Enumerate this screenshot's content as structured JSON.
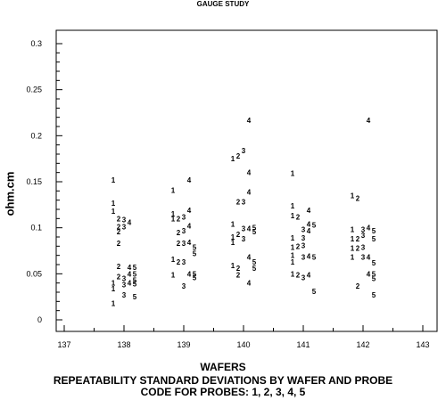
{
  "chart_data": {
    "type": "scatter",
    "title": "GAUGE STUDY",
    "xlabel": "WAFERS",
    "ylabel": "ohm.cm",
    "caption_line1": "REPEATABILITY STANDARD DEVIATIONS BY WAFER AND PROBE",
    "caption_line2": "CODE FOR PROBES: 1, 2, 3, 4, 5",
    "xlim": [
      137,
      143
    ],
    "ylim": [
      0,
      0.3
    ],
    "x_ticks": [
      "137",
      "138",
      "139",
      "140",
      "141",
      "142",
      "143"
    ],
    "y_ticks": [
      "0",
      "0.05",
      "0.1",
      "0.15",
      "0.2",
      "0.25",
      "0.3"
    ],
    "markers": "probe code digit",
    "series": [
      {
        "name": "1",
        "points": [
          [
            138,
            0.152
          ],
          [
            138,
            0.127
          ],
          [
            138,
            0.118
          ],
          [
            138,
            0.04
          ],
          [
            138,
            0.034
          ],
          [
            138,
            0.018
          ],
          [
            139,
            0.141
          ],
          [
            139,
            0.115
          ],
          [
            139,
            0.11
          ],
          [
            139,
            0.066
          ],
          [
            139,
            0.049
          ],
          [
            140,
            0.175
          ],
          [
            140,
            0.104
          ],
          [
            140,
            0.09
          ],
          [
            140,
            0.084
          ],
          [
            140,
            0.059
          ],
          [
            141,
            0.159
          ],
          [
            141,
            0.124
          ],
          [
            141,
            0.113
          ],
          [
            141,
            0.089
          ],
          [
            141,
            0.079
          ],
          [
            141,
            0.07
          ],
          [
            141,
            0.063
          ],
          [
            141,
            0.05
          ],
          [
            142,
            0.135
          ],
          [
            142,
            0.098
          ],
          [
            142,
            0.088
          ],
          [
            142,
            0.078
          ],
          [
            142,
            0.068
          ]
        ]
      },
      {
        "name": "2",
        "points": [
          [
            138,
            0.11
          ],
          [
            138,
            0.101
          ],
          [
            138,
            0.096
          ],
          [
            138,
            0.083
          ],
          [
            138,
            0.058
          ],
          [
            138,
            0.047
          ],
          [
            139,
            0.11
          ],
          [
            139,
            0.095
          ],
          [
            139,
            0.083
          ],
          [
            139,
            0.063
          ],
          [
            140,
            0.178
          ],
          [
            140,
            0.128
          ],
          [
            140,
            0.093
          ],
          [
            140,
            0.056
          ],
          [
            140,
            0.049
          ],
          [
            141,
            0.112
          ],
          [
            141,
            0.08
          ],
          [
            141,
            0.049
          ],
          [
            142,
            0.132
          ],
          [
            142,
            0.088
          ],
          [
            142,
            0.078
          ],
          [
            142,
            0.037
          ]
        ]
      },
      {
        "name": "3",
        "points": [
          [
            138,
            0.109
          ],
          [
            138,
            0.101
          ],
          [
            138,
            0.045
          ],
          [
            138,
            0.038
          ],
          [
            138,
            0.027
          ],
          [
            139,
            0.112
          ],
          [
            139,
            0.097
          ],
          [
            139,
            0.083
          ],
          [
            139,
            0.063
          ],
          [
            139,
            0.037
          ],
          [
            140,
            0.184
          ],
          [
            140,
            0.128
          ],
          [
            140,
            0.099
          ],
          [
            140,
            0.088
          ],
          [
            141,
            0.098
          ],
          [
            141,
            0.089
          ],
          [
            141,
            0.081
          ],
          [
            141,
            0.068
          ],
          [
            141,
            0.046
          ],
          [
            142,
            0.098
          ],
          [
            142,
            0.092
          ],
          [
            142,
            0.079
          ],
          [
            142,
            0.068
          ]
        ]
      },
      {
        "name": "4",
        "points": [
          [
            138,
            0.106
          ],
          [
            138,
            0.057
          ],
          [
            138,
            0.05
          ],
          [
            138,
            0.04
          ],
          [
            139,
            0.152
          ],
          [
            139,
            0.119
          ],
          [
            139,
            0.102
          ],
          [
            139,
            0.084
          ],
          [
            139,
            0.05
          ],
          [
            140,
            0.217
          ],
          [
            140,
            0.16
          ],
          [
            140,
            0.139
          ],
          [
            140,
            0.099
          ],
          [
            140,
            0.068
          ],
          [
            140,
            0.04
          ],
          [
            141,
            0.119
          ],
          [
            141,
            0.104
          ],
          [
            141,
            0.097
          ],
          [
            141,
            0.069
          ],
          [
            141,
            0.049
          ],
          [
            142,
            0.217
          ],
          [
            142,
            0.1
          ],
          [
            142,
            0.068
          ],
          [
            142,
            0.05
          ]
        ]
      },
      {
        "name": "5",
        "points": [
          [
            138,
            0.057
          ],
          [
            138,
            0.05
          ],
          [
            138,
            0.043
          ],
          [
            138,
            0.039
          ],
          [
            138,
            0.025
          ],
          [
            139,
            0.079
          ],
          [
            139,
            0.072
          ],
          [
            139,
            0.05
          ],
          [
            139,
            0.046
          ],
          [
            140,
            0.1
          ],
          [
            140,
            0.096
          ],
          [
            140,
            0.063
          ],
          [
            140,
            0.056
          ],
          [
            141,
            0.103
          ],
          [
            141,
            0.068
          ],
          [
            141,
            0.031
          ],
          [
            142,
            0.097
          ],
          [
            142,
            0.088
          ],
          [
            142,
            0.062
          ],
          [
            142,
            0.05
          ],
          [
            142,
            0.045
          ],
          [
            142,
            0.027
          ]
        ]
      }
    ]
  }
}
